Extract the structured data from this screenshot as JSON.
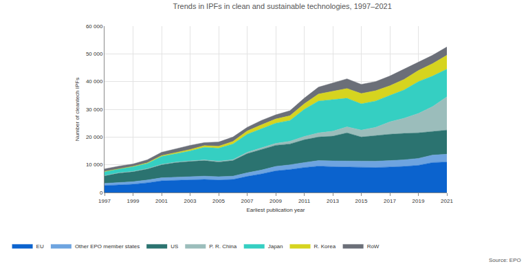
{
  "chart_data": {
    "type": "area",
    "stacked": true,
    "title": "Trends in IPFs in clean and sustainable technologies, 1997–2021",
    "x_label": "Earliest publication year",
    "y_label": "Number of cleantech IPFs",
    "source": "Source: EPO",
    "x": [
      1997,
      1998,
      1999,
      2000,
      2001,
      2002,
      2003,
      2004,
      2005,
      2006,
      2007,
      2008,
      2009,
      2010,
      2011,
      2012,
      2013,
      2014,
      2015,
      2016,
      2017,
      2018,
      2019,
      2020,
      2021
    ],
    "xlim": [
      1997,
      2021
    ],
    "xticks": [
      1997,
      1999,
      2001,
      2003,
      2005,
      2007,
      2009,
      2011,
      2013,
      2015,
      2017,
      2019,
      2021
    ],
    "ylim": [
      0,
      60000
    ],
    "yticks": [
      0,
      {
        "value": 10000,
        "label": "10 000"
      },
      {
        "value": 20000,
        "label": "20 000"
      },
      {
        "value": 30000,
        "label": "30 000"
      },
      {
        "value": 40000,
        "label": "40 000"
      },
      {
        "value": 50000,
        "label": "50 000"
      },
      {
        "value": 60000,
        "label": "60 000"
      }
    ],
    "grid": true,
    "legend": "bottom left",
    "series": [
      {
        "name": "EU",
        "color": "#0b63ce",
        "values": [
          2500,
          2700,
          3000,
          3500,
          4200,
          4400,
          4500,
          4700,
          4500,
          4700,
          5800,
          6700,
          7800,
          8300,
          9000,
          9500,
          9300,
          9200,
          9100,
          9000,
          9200,
          9400,
          9800,
          10800,
          11000
        ]
      },
      {
        "name": "Other EPO member states",
        "color": "#6ea4e0",
        "values": [
          800,
          900,
          900,
          1000,
          1100,
          1100,
          1200,
          1200,
          1200,
          1200,
          1300,
          1400,
          1600,
          1700,
          1800,
          2000,
          2100,
          2200,
          2200,
          2300,
          2300,
          2400,
          2500,
          2700,
          2800
        ]
      },
      {
        "name": "US",
        "color": "#2b7370",
        "values": [
          2700,
          3400,
          3600,
          4000,
          4700,
          5300,
          5500,
          5600,
          5300,
          5600,
          6900,
          7400,
          7600,
          7500,
          8200,
          8500,
          8900,
          10100,
          8700,
          9200,
          9500,
          9500,
          9200,
          8500,
          8700
        ]
      },
      {
        "name": "P. R. China",
        "color": "#9bbdbb",
        "values": [
          100,
          100,
          100,
          100,
          150,
          200,
          200,
          250,
          300,
          350,
          500,
          600,
          700,
          1000,
          1200,
          1500,
          1800,
          2200,
          2500,
          3000,
          4500,
          5500,
          7000,
          9000,
          12000
        ]
      },
      {
        "name": "Japan",
        "color": "#35cfc2",
        "values": [
          1400,
          1400,
          1700,
          1900,
          2850,
          3000,
          3600,
          4550,
          4700,
          5650,
          6500,
          6900,
          7300,
          7500,
          9800,
          11500,
          11400,
          10300,
          9500,
          9500,
          9500,
          10200,
          11500,
          11000,
          10000
        ]
      },
      {
        "name": "R. Korea",
        "color": "#d6d41f",
        "values": [
          100,
          100,
          150,
          200,
          300,
          400,
          500,
          600,
          700,
          900,
          1200,
          1400,
          1500,
          1700,
          2000,
          2500,
          3000,
          3500,
          3700,
          3700,
          3500,
          3800,
          4000,
          4500,
          5000
        ]
      },
      {
        "name": "RoW",
        "color": "#6b6f78",
        "values": [
          900,
          900,
          850,
          1100,
          1200,
          1400,
          1500,
          1100,
          1500,
          1600,
          1300,
          1600,
          1500,
          1800,
          2000,
          2500,
          3000,
          3500,
          3300,
          3300,
          3500,
          3700,
          3000,
          3000,
          3000
        ]
      }
    ]
  }
}
